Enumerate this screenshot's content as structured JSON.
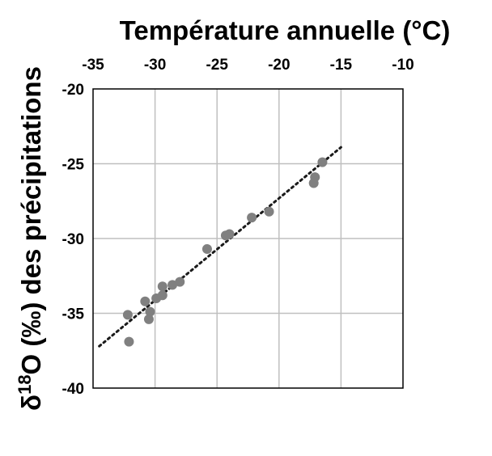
{
  "chart_data": {
    "type": "scatter",
    "title": "",
    "xlabel": "Température annuelle (°C)",
    "ylabel_prefix": "δ",
    "ylabel_sup": "18",
    "ylabel_rest": "O (‰) des précipitations",
    "xaxis_position": "top",
    "xlim": [
      -35,
      -10
    ],
    "ylim": [
      -40,
      -20
    ],
    "xticks": [
      -35,
      -30,
      -25,
      -20,
      -15,
      -10
    ],
    "xtick_labels": [
      "-35",
      "-30",
      "-25",
      "-20",
      "-15",
      "-10"
    ],
    "yticks": [
      -20,
      -25,
      -30,
      -35,
      -40
    ],
    "ytick_labels": [
      "-20",
      "-25",
      "-30",
      "-35",
      "-40"
    ],
    "grid": true,
    "colors": {
      "points": "#808080",
      "trendline": "#1a1a1a",
      "grid": "#bfbfbf",
      "axes": "#000000"
    },
    "series": [
      {
        "points": [
          {
            "x": -32.2,
            "y": -35.1
          },
          {
            "x": -32.1,
            "y": -36.9
          },
          {
            "x": -30.8,
            "y": -34.2
          },
          {
            "x": -30.5,
            "y": -35.4
          },
          {
            "x": -30.4,
            "y": -34.9
          },
          {
            "x": -29.9,
            "y": -34.0
          },
          {
            "x": -29.4,
            "y": -33.8
          },
          {
            "x": -29.4,
            "y": -33.2
          },
          {
            "x": -28.6,
            "y": -33.1
          },
          {
            "x": -28.0,
            "y": -32.9
          },
          {
            "x": -25.8,
            "y": -30.7
          },
          {
            "x": -24.3,
            "y": -29.8
          },
          {
            "x": -24.0,
            "y": -29.7
          },
          {
            "x": -22.2,
            "y": -28.6
          },
          {
            "x": -20.8,
            "y": -28.2
          },
          {
            "x": -17.2,
            "y": -26.3
          },
          {
            "x": -17.1,
            "y": -25.9
          },
          {
            "x": -16.5,
            "y": -24.9
          }
        ]
      }
    ],
    "trendline": {
      "style": "dotted",
      "x": [
        -34.5,
        -15.0
      ],
      "y": [
        -37.2,
        -23.9
      ]
    }
  }
}
